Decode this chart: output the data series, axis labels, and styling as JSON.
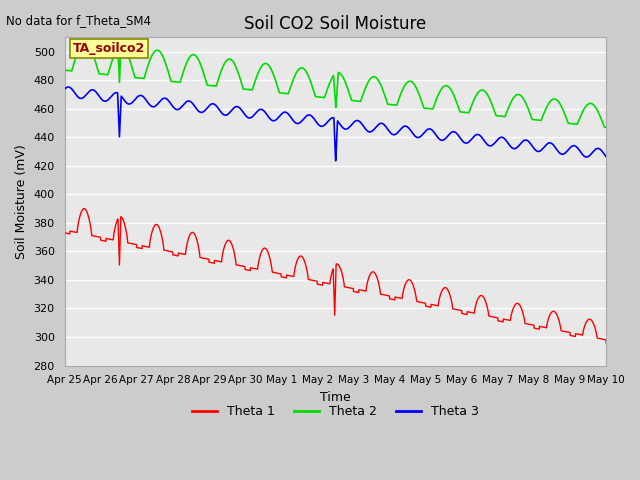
{
  "title": "Soil CO2 Soil Moisture",
  "no_data_text": "No data for f_Theta_SM4",
  "annotation_text": "TA_soilco2",
  "xlabel": "Time",
  "ylabel": "Soil Moisture (mV)",
  "ylim": [
    280,
    510
  ],
  "yticks": [
    280,
    300,
    320,
    340,
    360,
    380,
    400,
    420,
    440,
    460,
    480,
    500
  ],
  "x_tick_labels": [
    "Apr 25",
    "Apr 26",
    "Apr 27",
    "Apr 28",
    "Apr 29",
    "Apr 30",
    "May 1",
    "May 2",
    "May 3",
    "May 4",
    "May 5",
    "May 6",
    "May 7",
    "May 8",
    "May 9",
    "May 10"
  ],
  "legend_entries": [
    {
      "label": "Theta 1",
      "color": "#ff0000"
    },
    {
      "label": "Theta 2",
      "color": "#00dd00"
    },
    {
      "label": "Theta 3",
      "color": "#0000ff"
    }
  ],
  "theta1_color": "#ff0000",
  "theta2_color": "#00dd00",
  "theta3_color": "#0000ff",
  "annotation_box_facecolor": "#ffff99",
  "annotation_text_color": "#990000",
  "annotation_box_edgecolor": "#888800",
  "fig_facecolor": "#cccccc",
  "ax_facecolor": "#e8e8e8",
  "grid_color": "#ffffff"
}
